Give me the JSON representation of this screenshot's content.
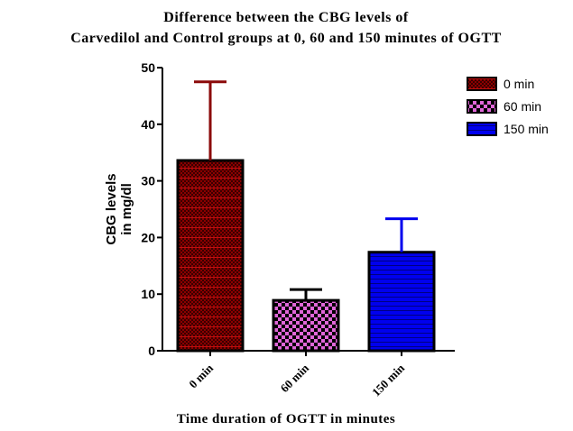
{
  "chart_data": {
    "type": "bar",
    "title": [
      "Difference between the CBG levels of",
      "Carvedilol and Control groups at 0, 60 and 150 minutes of OGTT"
    ],
    "xlabel": "Time duration of OGTT in minutes",
    "ylabel": [
      "CBG levels",
      "in mg/dl"
    ],
    "ylim": [
      0,
      50
    ],
    "yticks": [
      0,
      10,
      20,
      30,
      40,
      50
    ],
    "categories": [
      "0 min",
      "60 min",
      "150 min"
    ],
    "values": [
      33.6,
      8.9,
      17.4
    ],
    "error_upper": [
      47.5,
      10.8,
      23.3
    ],
    "colors": [
      "#8b0000",
      "#e066d8",
      "#0000ee"
    ],
    "error_colors": [
      "#8b0a0a",
      "#000000",
      "#0000ee"
    ],
    "legend": {
      "placement": "top-right",
      "entries": [
        "0 min",
        "60 min",
        "150 min"
      ]
    },
    "grid": false
  }
}
